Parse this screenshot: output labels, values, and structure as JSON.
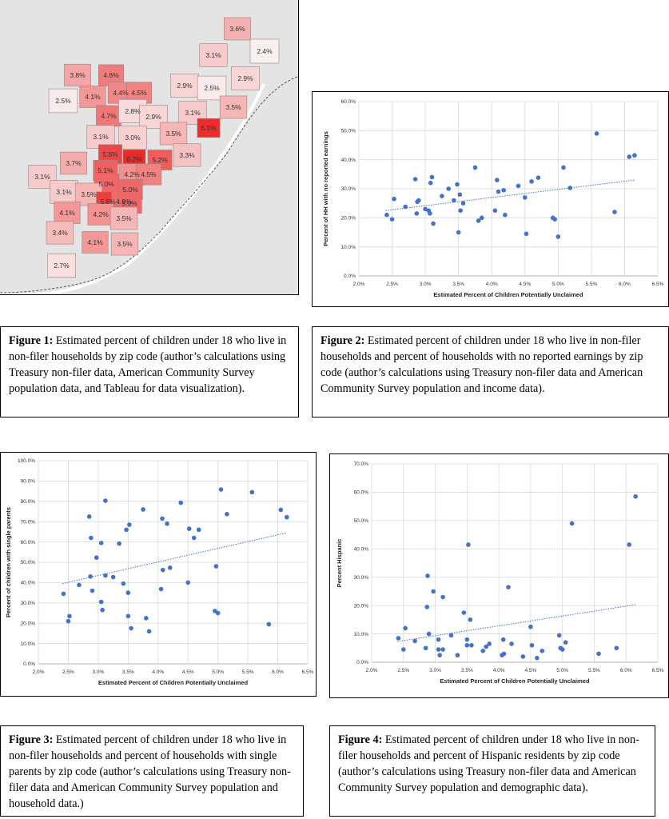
{
  "map": {
    "zips": [
      {
        "label": "3.6%",
        "value": 3.6
      },
      {
        "label": "3.1%",
        "value": 3.1
      },
      {
        "label": "2.4%",
        "value": 2.4
      },
      {
        "label": "3.8%",
        "value": 3.8
      },
      {
        "label": "4.6%",
        "value": 4.6
      },
      {
        "label": "2.5%",
        "value": 2.5
      },
      {
        "label": "4.1%",
        "value": 4.1
      },
      {
        "label": "4.4%",
        "value": 4.4
      },
      {
        "label": "4.5%",
        "value": 4.5
      },
      {
        "label": "2.9%",
        "value": 2.9
      },
      {
        "label": "2.5%",
        "value": 2.5
      },
      {
        "label": "2.9%",
        "value": 2.9
      },
      {
        "label": "4.7%",
        "value": 4.7
      },
      {
        "label": "2.8%",
        "value": 2.8
      },
      {
        "label": "2.9%",
        "value": 2.9
      },
      {
        "label": "3.1%",
        "value": 3.1
      },
      {
        "label": "3.5%",
        "value": 3.5
      },
      {
        "label": "3.1%",
        "value": 3.1
      },
      {
        "label": "6.1%",
        "value": 6.1
      },
      {
        "label": "3.0%",
        "value": 3.0
      },
      {
        "label": "3.5%",
        "value": 3.5
      },
      {
        "label": "5.6%",
        "value": 5.6
      },
      {
        "label": "6.2%",
        "value": 6.2
      },
      {
        "label": "5.2%",
        "value": 5.2
      },
      {
        "label": "3.3%",
        "value": 3.3
      },
      {
        "label": "3.7%",
        "value": 3.7
      },
      {
        "label": "5.1%",
        "value": 5.1
      },
      {
        "label": "4.2%",
        "value": 4.2
      },
      {
        "label": "4.5%",
        "value": 4.5
      },
      {
        "label": "3.1%",
        "value": 3.1
      },
      {
        "label": "5.0%",
        "value": 5.0
      },
      {
        "label": "5.0%",
        "value": 5.0
      },
      {
        "label": "3.1%",
        "value": 3.1
      },
      {
        "label": "3.5%",
        "value": 3.5
      },
      {
        "label": "5.8%",
        "value": 5.8
      },
      {
        "label": "4.9%",
        "value": 4.9
      },
      {
        "label": "5.0%",
        "value": 5.0
      },
      {
        "label": "4.1%",
        "value": 4.1
      },
      {
        "label": "4.2%",
        "value": 4.2
      },
      {
        "label": "3.5%",
        "value": 3.5
      },
      {
        "label": "3.4%",
        "value": 3.4
      },
      {
        "label": "4.1%",
        "value": 4.1
      },
      {
        "label": "3.5%",
        "value": 3.5
      },
      {
        "label": "2.7%",
        "value": 2.7
      }
    ]
  },
  "captions": {
    "fig1": {
      "lead": "Figure 1:",
      "text": " Estimated percent of children under 18 who live in non-filer households by zip code (author’s calculations using Treasury non-filer data, American Community Survey population data, and Tableau for data visualization)."
    },
    "fig2": {
      "lead": "Figure 2:",
      "text": " Estimated percent of children under 18 who live in non-filer households and percent of households with no reported earnings by zip code (author’s calculations using Treasury non-filer data and American Community Survey population and income data)."
    },
    "fig3": {
      "lead": "Figure 3:",
      "text": " Estimated percent of children under 18 who live in non-filer households and percent of households with single parents by zip code (author’s calculations using Treasury non-filer data and American Community Survey population and household data.)"
    },
    "fig4": {
      "lead": "Figure 4:",
      "text": " Estimated percent of children under 18 who live in non-filer households and percent of Hispanic residents by zip code (author’s calculations using Treasury non-filer data and American Community Survey population and demographic data)."
    }
  },
  "chart_data": [
    {
      "type": "scatter",
      "id": "fig2",
      "xlabel": "Estimated Percent of Children Potentially Unclaimed",
      "ylabel": "Percent of HH with no reported earnings",
      "xlim": [
        2.0,
        6.5
      ],
      "ylim": [
        0,
        60
      ],
      "xticks": [
        "2.0%",
        "2.5%",
        "3.0%",
        "3.5%",
        "4.0%",
        "4.5%",
        "5.0%",
        "5.5%",
        "6.0%",
        "6.5%"
      ],
      "yticks": [
        "0.0%",
        "10.0%",
        "20.0%",
        "30.0%",
        "40.0%",
        "50.0%",
        "60.0%"
      ],
      "trendline": [
        [
          2.4,
          22.5
        ],
        [
          6.15,
          33
        ]
      ],
      "grid": true,
      "points": [
        [
          2.42,
          21
        ],
        [
          2.5,
          19.5
        ],
        [
          2.53,
          26.5
        ],
        [
          2.7,
          23.8
        ],
        [
          2.85,
          33.3
        ],
        [
          2.87,
          21.5
        ],
        [
          2.88,
          25.5
        ],
        [
          2.9,
          26
        ],
        [
          3.0,
          23
        ],
        [
          3.05,
          22.5
        ],
        [
          3.07,
          21.5
        ],
        [
          3.08,
          32
        ],
        [
          3.1,
          34
        ],
        [
          3.12,
          18
        ],
        [
          3.25,
          27.5
        ],
        [
          3.35,
          30
        ],
        [
          3.43,
          26
        ],
        [
          3.48,
          31.5
        ],
        [
          3.5,
          15
        ],
        [
          3.52,
          28
        ],
        [
          3.53,
          22.5
        ],
        [
          3.57,
          25
        ],
        [
          3.75,
          37.3
        ],
        [
          3.8,
          19
        ],
        [
          3.85,
          20
        ],
        [
          4.05,
          22.5
        ],
        [
          4.08,
          33
        ],
        [
          4.1,
          29
        ],
        [
          4.18,
          29.5
        ],
        [
          4.2,
          21
        ],
        [
          4.4,
          31
        ],
        [
          4.5,
          27
        ],
        [
          4.52,
          14.5
        ],
        [
          4.6,
          32.5
        ],
        [
          4.7,
          33.8
        ],
        [
          4.92,
          20
        ],
        [
          4.95,
          19.5
        ],
        [
          5.0,
          13.5
        ],
        [
          5.08,
          37.3
        ],
        [
          5.18,
          30.3
        ],
        [
          5.58,
          49
        ],
        [
          5.85,
          22
        ],
        [
          6.07,
          41
        ],
        [
          6.15,
          41.5
        ]
      ]
    },
    {
      "type": "scatter",
      "id": "fig3",
      "xlabel": "Estimated Percent of Children Potentially Unclaimed",
      "ylabel": "Percent of children with single parents",
      "xlim": [
        2.0,
        6.5
      ],
      "ylim": [
        0,
        100
      ],
      "xticks": [
        "2.0%",
        "2.5%",
        "3.0%",
        "3.5%",
        "4.0%",
        "4.5%",
        "5.0%",
        "5.5%",
        "6.0%",
        "6.5%"
      ],
      "yticks": [
        "0.0%",
        "10.0%",
        "20.0%",
        "30.0%",
        "40.0%",
        "50.0%",
        "60.0%",
        "70.0%",
        "80.0%",
        "90.0%",
        "100.0%"
      ],
      "trendline": [
        [
          2.4,
          39.5
        ],
        [
          6.15,
          64.5
        ]
      ],
      "grid": true,
      "points": [
        [
          2.42,
          34.5
        ],
        [
          2.5,
          21
        ],
        [
          2.52,
          23.5
        ],
        [
          2.68,
          38.8
        ],
        [
          2.85,
          72.5
        ],
        [
          2.87,
          43
        ],
        [
          2.88,
          62
        ],
        [
          2.9,
          36
        ],
        [
          2.97,
          52.3
        ],
        [
          3.05,
          30.5
        ],
        [
          3.05,
          59.5
        ],
        [
          3.07,
          26.5
        ],
        [
          3.12,
          80.3
        ],
        [
          3.12,
          43.5
        ],
        [
          3.25,
          42.7
        ],
        [
          3.35,
          59.2
        ],
        [
          3.42,
          39.5
        ],
        [
          3.47,
          66
        ],
        [
          3.5,
          35
        ],
        [
          3.5,
          23.5
        ],
        [
          3.52,
          68.5
        ],
        [
          3.55,
          17.5
        ],
        [
          3.75,
          76
        ],
        [
          3.8,
          22.5
        ],
        [
          3.85,
          16
        ],
        [
          4.05,
          36.8
        ],
        [
          4.07,
          71.5
        ],
        [
          4.08,
          46.2
        ],
        [
          4.15,
          69
        ],
        [
          4.2,
          47.3
        ],
        [
          4.38,
          79.3
        ],
        [
          4.5,
          40
        ],
        [
          4.52,
          66.5
        ],
        [
          4.6,
          62
        ],
        [
          4.68,
          66
        ],
        [
          4.95,
          26
        ],
        [
          4.97,
          48
        ],
        [
          5.0,
          25
        ],
        [
          5.05,
          85.8
        ],
        [
          5.15,
          73.7
        ],
        [
          5.57,
          84.5
        ],
        [
          5.85,
          19.5
        ],
        [
          6.05,
          75.8
        ],
        [
          6.15,
          72.2
        ]
      ]
    },
    {
      "type": "scatter",
      "id": "fig4",
      "xlabel": "Estimated Percent of Children Potentially Unclaimed",
      "ylabel": "Percent Hispanic",
      "xlim": [
        2.0,
        6.5
      ],
      "ylim": [
        0,
        70
      ],
      "xticks": [
        "2.0%",
        "2.5%",
        "3.0%",
        "3.5%",
        "4.0%",
        "4.5%",
        "5.0%",
        "5.5%",
        "6.0%",
        "6.5%"
      ],
      "yticks": [
        "0.0%",
        "10.0%",
        "20.0%",
        "30.0%",
        "40.0%",
        "50.0%",
        "60.0%",
        "70.0%"
      ],
      "trendline": [
        [
          2.4,
          7.3
        ],
        [
          6.15,
          20.3
        ]
      ],
      "grid": true,
      "points": [
        [
          2.42,
          8.5
        ],
        [
          2.5,
          4.5
        ],
        [
          2.53,
          12
        ],
        [
          2.68,
          7.5
        ],
        [
          2.85,
          5
        ],
        [
          2.87,
          19.5
        ],
        [
          2.88,
          30.5
        ],
        [
          2.9,
          10
        ],
        [
          2.97,
          25
        ],
        [
          3.05,
          4.5
        ],
        [
          3.05,
          8
        ],
        [
          3.07,
          2.5
        ],
        [
          3.12,
          23
        ],
        [
          3.12,
          4.5
        ],
        [
          3.25,
          9.5
        ],
        [
          3.35,
          2.5
        ],
        [
          3.45,
          17.5
        ],
        [
          3.5,
          8
        ],
        [
          3.5,
          6
        ],
        [
          3.52,
          41.5
        ],
        [
          3.55,
          15
        ],
        [
          3.57,
          6
        ],
        [
          3.75,
          4
        ],
        [
          3.8,
          5.5
        ],
        [
          3.85,
          6.5
        ],
        [
          4.05,
          2.5
        ],
        [
          4.07,
          8
        ],
        [
          4.08,
          3
        ],
        [
          4.15,
          26.5
        ],
        [
          4.2,
          6.5
        ],
        [
          4.38,
          2
        ],
        [
          4.5,
          12.5
        ],
        [
          4.52,
          6
        ],
        [
          4.6,
          1.5
        ],
        [
          4.68,
          4
        ],
        [
          4.95,
          9.5
        ],
        [
          4.97,
          5
        ],
        [
          5.0,
          4.5
        ],
        [
          5.05,
          7
        ],
        [
          5.15,
          49
        ],
        [
          5.57,
          3
        ],
        [
          5.85,
          5
        ],
        [
          6.05,
          41.5
        ],
        [
          6.15,
          58.5
        ]
      ]
    }
  ]
}
